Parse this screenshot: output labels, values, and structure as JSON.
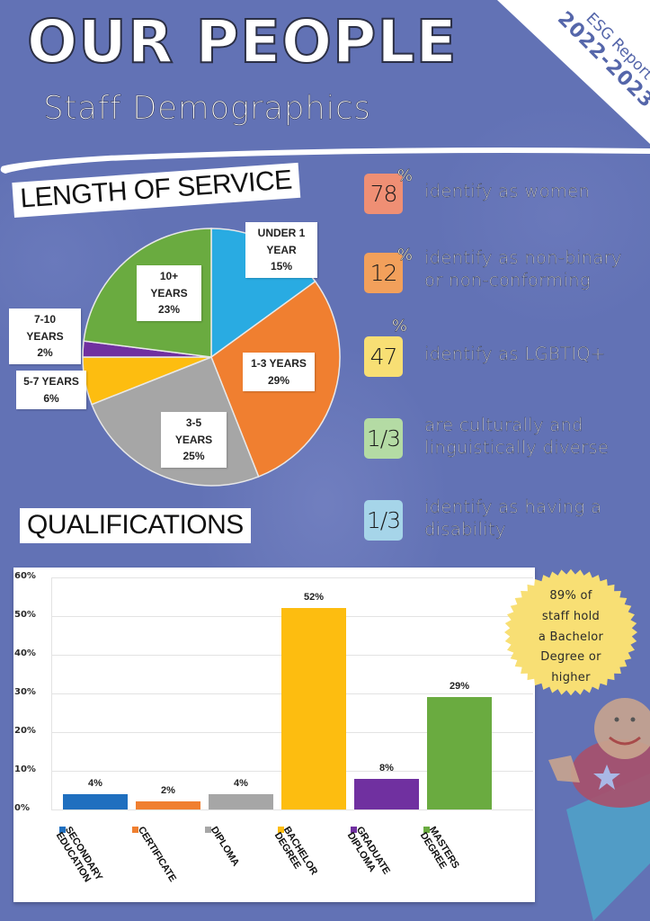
{
  "header": {
    "title": "OUR PEOPLE",
    "subtitle": "Staff Demographics",
    "corner_line1": "ESG Report",
    "corner_line2": "2022-2023"
  },
  "sections": {
    "length_of_service": "LENGTH OF SERVICE",
    "qualifications": "QUALIFICATIONS"
  },
  "stats": [
    {
      "value": "78",
      "suffix": "%",
      "text_line1": "identify as women",
      "text_line2": "",
      "color": "#ef8f74"
    },
    {
      "value": "12",
      "suffix": "%",
      "text_line1": "identify as non-binary",
      "text_line2": "or non-conforming",
      "color": "#f2a05b"
    },
    {
      "value": "47",
      "suffix": "%",
      "text_line1": "identify as LGBTIQ+",
      "text_line2": "",
      "color": "#f8df74"
    },
    {
      "value": "1/3",
      "suffix": "",
      "text_line1": "are culturally and",
      "text_line2": "linguistically diverse",
      "color": "#b4dba4"
    },
    {
      "value": "1/3",
      "suffix": "",
      "text_line1": "identify as having a",
      "text_line2": "disability",
      "color": "#a6d5e9"
    }
  ],
  "callout": {
    "line1": "89% of",
    "line2": "staff hold",
    "line3": "a Bachelor",
    "line4": "Degree or",
    "line5": "higher",
    "color": "#f8df74"
  },
  "chart_data": [
    {
      "type": "pie",
      "title": "LENGTH OF SERVICE",
      "categories": [
        "UNDER 1 YEAR",
        "1-3 YEARS",
        "3-5 YEARS",
        "5-7 YEARS",
        "7-10 YEARS",
        "10+ YEARS"
      ],
      "values": [
        15,
        29,
        25,
        6,
        2,
        23
      ],
      "value_labels": [
        "15%",
        "29%",
        "25%",
        "6%",
        "2%",
        "23%"
      ],
      "label_line1": [
        "UNDER 1",
        "1-3 YEARS",
        "3-5 YEARS",
        "5-7 YEARS",
        "7-10 YEARS",
        "10+ YEARS"
      ],
      "label_line2": [
        "YEAR",
        "",
        "",
        "",
        "",
        ""
      ],
      "colors": [
        "#29abe2",
        "#f07f30",
        "#a6a6a6",
        "#fdbd10",
        "#7030a0",
        "#6aab40"
      ],
      "start_angle": "12 o'clock, clockwise",
      "legend": "data labels on slices"
    },
    {
      "type": "bar",
      "title": "QUALIFICATIONS",
      "categories": [
        "SECONDARY EDUCATION",
        "CERTIFICATE",
        "DIPLOMA",
        "BACHELOR DEGREE",
        "GRADUATE DIPLOMA",
        "MASTERS DEGREE"
      ],
      "legend_line1": [
        "SECONDARY",
        "CERTIFICATE",
        "DIPLOMA",
        "BACHELOR",
        "GRADUATE",
        "MASTERS"
      ],
      "legend_line2": [
        "EDUCATION",
        "",
        "",
        "DEGREE",
        "DIPLOMA",
        "DEGREE"
      ],
      "values": [
        4,
        2,
        4,
        52,
        8,
        29
      ],
      "value_labels": [
        "4%",
        "2%",
        "4%",
        "52%",
        "8%",
        "29%"
      ],
      "colors": [
        "#1f6fbf",
        "#f07f30",
        "#a6a6a6",
        "#fdbd10",
        "#7030a0",
        "#6aab40"
      ],
      "xlabel": "",
      "ylabel": "",
      "ylim": [
        0,
        60
      ],
      "yticks": [
        "0%",
        "10%",
        "20%",
        "30%",
        "40%",
        "50%",
        "60%"
      ],
      "grid": true,
      "legend_position": "bottom"
    }
  ]
}
